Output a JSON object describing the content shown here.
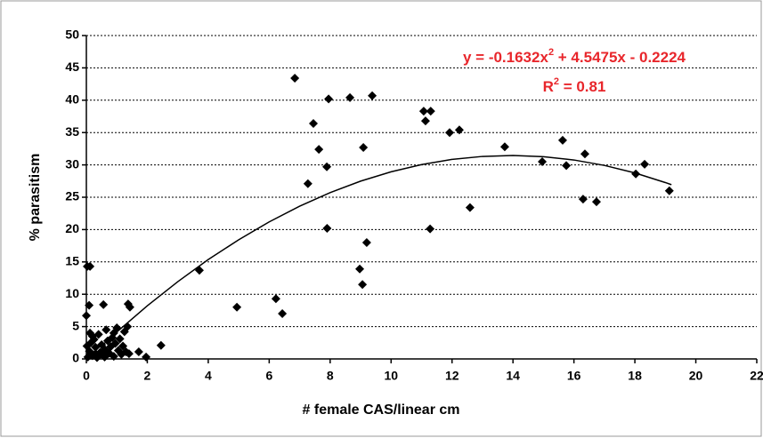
{
  "chart_data": {
    "type": "scatter",
    "xlabel": "# female CAS/linear cm",
    "ylabel": "% parasitism",
    "color": "#000000",
    "x": [
      6.84,
      7.45,
      7.63,
      7.27,
      7.89,
      7.95,
      7.9,
      8.65,
      9.38,
      9.09,
      9.2,
      8.97,
      9.06,
      11.07,
      11.3,
      11.13,
      11.28,
      11.92,
      12.24,
      12.59,
      13.73,
      14.96,
      15.63,
      15.75,
      16.36,
      16.3,
      16.74,
      18.03,
      18.32,
      19.13,
      3.71,
      4.94,
      6.22,
      6.43,
      2.45,
      1.96,
      1.72,
      1.43,
      1.37,
      0.56,
      0.03,
      0.12,
      0.09,
      0.0,
      0.05,
      0.1,
      0.15,
      0.2,
      0.25,
      0.3,
      0.35,
      0.4,
      0.45,
      0.5,
      0.55,
      0.6,
      0.65,
      0.7,
      0.75,
      0.8,
      0.85,
      0.9,
      0.95,
      1.0,
      1.05,
      1.1,
      1.15,
      1.2,
      1.25,
      1.3,
      1.35,
      1.4,
      0.02,
      0.12,
      0.2,
      0.3,
      0.6,
      0.9
    ],
    "values": [
      43.4,
      36.4,
      32.4,
      27.1,
      29.7,
      40.2,
      20.2,
      40.4,
      40.7,
      32.7,
      18.0,
      13.9,
      11.5,
      38.3,
      38.3,
      36.8,
      20.1,
      35.0,
      35.4,
      23.4,
      32.8,
      30.5,
      33.8,
      29.9,
      31.7,
      24.7,
      24.3,
      28.6,
      30.1,
      26.0,
      13.7,
      8.0,
      9.3,
      7.0,
      2.1,
      0.3,
      1.1,
      8.0,
      8.5,
      8.4,
      14.3,
      14.3,
      8.3,
      6.7,
      0.3,
      1.2,
      2.5,
      0.5,
      3.0,
      1.8,
      0.2,
      3.8,
      1.0,
      2.2,
      0.6,
      1.5,
      4.5,
      2.8,
      0.9,
      1.9,
      3.3,
      0.4,
      2.4,
      4.8,
      1.3,
      3.1,
      0.7,
      2.0,
      4.2,
      1.1,
      5.0,
      0.8,
      2.0,
      4.0,
      3.5,
      0.8,
      0.3,
      4.0
    ],
    "trendline": {
      "color": "#000000",
      "x": [
        0.5,
        1,
        2,
        3,
        4,
        5,
        6,
        7,
        8,
        9,
        10,
        11,
        12,
        13,
        14,
        15,
        16,
        17,
        18,
        19,
        19.2
      ],
      "values": [
        2.01,
        4.16,
        8.22,
        11.94,
        15.36,
        18.43,
        21.19,
        23.62,
        25.72,
        27.49,
        28.93,
        30.05,
        30.85,
        31.31,
        31.45,
        31.27,
        30.76,
        29.92,
        28.76,
        27.27,
        26.94
      ]
    },
    "equation": [
      "y = -0.1632x",
      "2",
      " + 4.5475x - 0.2224"
    ],
    "r_squared": [
      "R",
      "2",
      " = 0.81"
    ],
    "annotation_color": "#e8262b",
    "xlim": [
      0,
      22
    ],
    "xticks": [
      0,
      2,
      4,
      6,
      8,
      10,
      12,
      14,
      16,
      18,
      20,
      22
    ],
    "ylim": [
      0,
      50
    ],
    "yticks": [
      0,
      5,
      10,
      15,
      20,
      25,
      30,
      35,
      40,
      45,
      50
    ],
    "grid": true
  }
}
